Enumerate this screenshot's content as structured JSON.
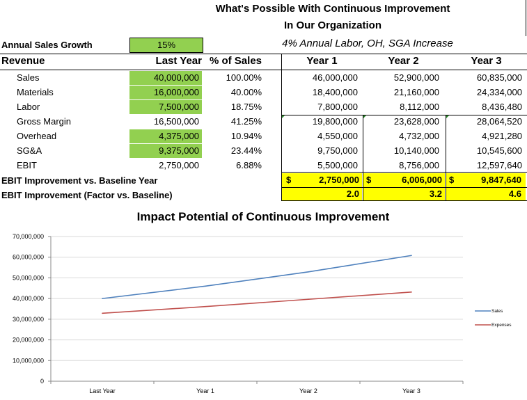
{
  "header": {
    "title_line1": "What's Possible With Continuous Improvement",
    "title_line2": "In Our Organization",
    "subtitle": "4% Annual Labor, OH, SGA Increase"
  },
  "growth": {
    "label": "Annual Sales Growth",
    "value": "15%"
  },
  "columns": {
    "revenue": "Revenue",
    "last_year": "Last Year",
    "pct": "% of Sales",
    "year1": "Year 1",
    "year2": "Year 2",
    "year3": "Year 3"
  },
  "rows": [
    {
      "label": "Sales",
      "last": "40,000,000",
      "pct": "100.00%",
      "y1": "46,000,000",
      "y2": "52,900,000",
      "y3": "60,835,000",
      "green": true
    },
    {
      "label": "Materials",
      "last": "16,000,000",
      "pct": "40.00%",
      "y1": "18,400,000",
      "y2": "21,160,000",
      "y3": "24,334,000",
      "green": true
    },
    {
      "label": "Labor",
      "last": "7,500,000",
      "pct": "18.75%",
      "y1": "7,800,000",
      "y2": "8,112,000",
      "y3": "8,436,480",
      "green": true
    },
    {
      "label": "Gross Margin",
      "last": "16,500,000",
      "pct": "41.25%",
      "y1": "19,800,000",
      "y2": "23,628,000",
      "y3": "28,064,520",
      "green": false
    },
    {
      "label": "Overhead",
      "last": "4,375,000",
      "pct": "10.94%",
      "y1": "4,550,000",
      "y2": "4,732,000",
      "y3": "4,921,280",
      "green": true
    },
    {
      "label": "SG&A",
      "last": "9,375,000",
      "pct": "23.44%",
      "y1": "9,750,000",
      "y2": "10,140,000",
      "y3": "10,545,600",
      "green": true
    },
    {
      "label": "EBIT",
      "last": "2,750,000",
      "pct": "6.88%",
      "y1": "5,500,000",
      "y2": "8,756,000",
      "y3": "12,597,640",
      "green": false
    }
  ],
  "improvement": {
    "label": "EBIT Improvement vs. Baseline Year",
    "currency": "$",
    "y1": "2,750,000",
    "y2": "6,006,000",
    "y3": "9,847,640"
  },
  "factor": {
    "label": "EBIT Improvement (Factor vs. Baseline)",
    "y1": "2.0",
    "y2": "3.2",
    "y3": "4.6"
  },
  "colors": {
    "green": "#92d050",
    "yellow": "#ffff00",
    "sales": "#4f81bd",
    "expenses": "#c0504d"
  },
  "chart_data": {
    "type": "line",
    "title": "Impact Potential of Continuous Improvement",
    "categories": [
      "Last Year",
      "Year 1",
      "Year 2",
      "Year 3"
    ],
    "series": [
      {
        "name": "Sales",
        "values": [
          40000000,
          46000000,
          52900000,
          60835000
        ],
        "color": "#4f81bd"
      },
      {
        "name": "Expenses",
        "values": [
          32875000,
          36100000,
          39632000,
          43130280
        ],
        "color": "#c0504d"
      }
    ],
    "ylim": [
      0,
      70000000
    ],
    "yticks": [
      0,
      10000000,
      20000000,
      30000000,
      40000000,
      50000000,
      60000000,
      70000000
    ],
    "ytick_labels": [
      "0",
      "10,000,000",
      "20,000,000",
      "30,000,000",
      "40,000,000",
      "50,000,000",
      "60,000,000",
      "70,000,000"
    ],
    "grid": true,
    "legend": "right"
  }
}
